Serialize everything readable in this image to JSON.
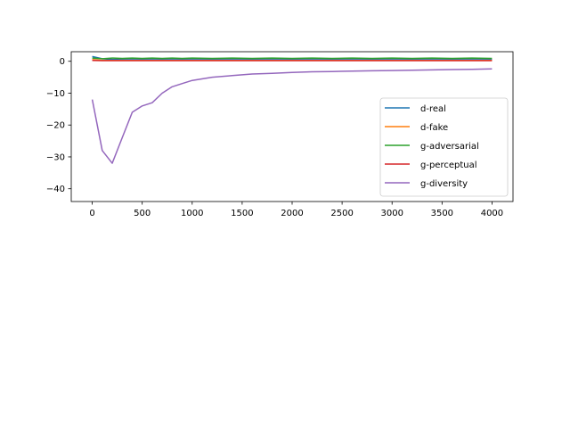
{
  "chart_data": {
    "type": "line",
    "title": "",
    "xlabel": "",
    "ylabel": "",
    "xlim": [
      -210,
      4210
    ],
    "ylim": [
      -44,
      3
    ],
    "xticks": [
      0,
      500,
      1000,
      1500,
      2000,
      2500,
      3000,
      3500,
      4000
    ],
    "xtick_labels": [
      "0",
      "500",
      "1000",
      "1500",
      "2000",
      "2500",
      "3000",
      "3500",
      "4000"
    ],
    "yticks": [
      0,
      -10,
      -20,
      -30,
      -40
    ],
    "ytick_labels": [
      "0",
      "−10",
      "−20",
      "−30",
      "−40"
    ],
    "grid": false,
    "legend_position": "center-right",
    "x": [
      0,
      100,
      200,
      300,
      400,
      500,
      600,
      700,
      800,
      900,
      1000,
      1200,
      1400,
      1600,
      1800,
      2000,
      2200,
      2400,
      2600,
      2800,
      3000,
      3200,
      3400,
      3600,
      3800,
      4000
    ],
    "series": [
      {
        "name": "d-real",
        "color": "#1f77b4",
        "values": [
          1.5,
          0.8,
          0.6,
          0.5,
          0.5,
          0.5,
          0.5,
          0.5,
          0.5,
          0.5,
          0.5,
          0.5,
          0.5,
          0.5,
          0.5,
          0.5,
          0.5,
          0.5,
          0.5,
          0.5,
          0.5,
          0.5,
          0.5,
          0.5,
          0.5,
          0.5
        ]
      },
      {
        "name": "d-fake",
        "color": "#ff7f0e",
        "values": [
          0.5,
          0.3,
          0.3,
          0.3,
          0.3,
          0.3,
          0.3,
          0.3,
          0.3,
          0.3,
          0.3,
          0.3,
          0.3,
          0.3,
          0.3,
          0.3,
          0.3,
          0.3,
          0.3,
          0.3,
          0.3,
          0.3,
          0.3,
          0.3,
          0.3,
          0.3
        ]
      },
      {
        "name": "g-adversarial",
        "color": "#2ca02c",
        "values": [
          1.0,
          0.8,
          1.0,
          0.9,
          1.0,
          0.9,
          1.0,
          0.9,
          1.0,
          0.9,
          1.0,
          0.9,
          1.0,
          0.9,
          1.0,
          0.9,
          1.0,
          0.9,
          1.0,
          0.9,
          1.0,
          0.9,
          1.0,
          0.9,
          1.0,
          0.9
        ]
      },
      {
        "name": "g-perceptual",
        "color": "#d62728",
        "values": [
          0.3,
          0.2,
          0.2,
          0.2,
          0.2,
          0.2,
          0.2,
          0.2,
          0.2,
          0.2,
          0.2,
          0.2,
          0.2,
          0.2,
          0.2,
          0.2,
          0.2,
          0.2,
          0.2,
          0.2,
          0.2,
          0.2,
          0.2,
          0.2,
          0.2,
          0.2
        ]
      },
      {
        "name": "g-diversity",
        "color": "#9467bd",
        "values": [
          -12,
          -28,
          -32,
          -24,
          -16,
          -14,
          -13,
          -10,
          -8,
          -7,
          -6,
          -5,
          -4.5,
          -4,
          -3.8,
          -3.5,
          -3.3,
          -3.2,
          -3.1,
          -3.0,
          -2.9,
          -2.8,
          -2.7,
          -2.6,
          -2.5,
          -2.4
        ]
      }
    ]
  }
}
